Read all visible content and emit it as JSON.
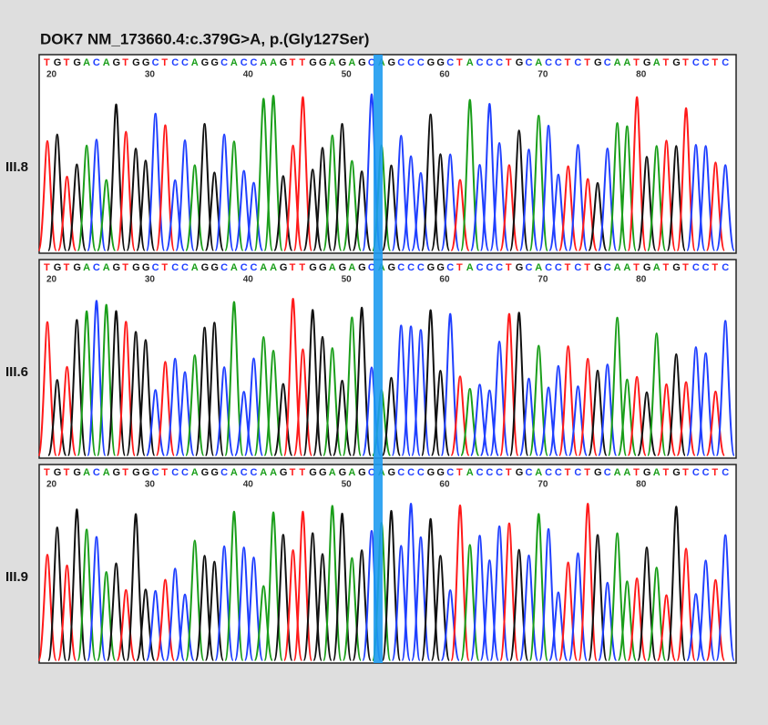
{
  "figure": {
    "title": "DOK7 NM_173660.4:c.379G>A, p.(Gly127Ser)",
    "sequence": "TGTGACAGTGGCTCCAGGCACCAAGTTGGAGAGCAGCCCGGCTACCCTGCACCTCTGCAATGATGTCCTC",
    "positions": [
      20,
      30,
      40,
      50,
      60,
      70,
      80
    ],
    "panels": [
      {
        "label": "III.8"
      },
      {
        "label": "III.6"
      },
      {
        "label": "III.9"
      }
    ]
  }
}
